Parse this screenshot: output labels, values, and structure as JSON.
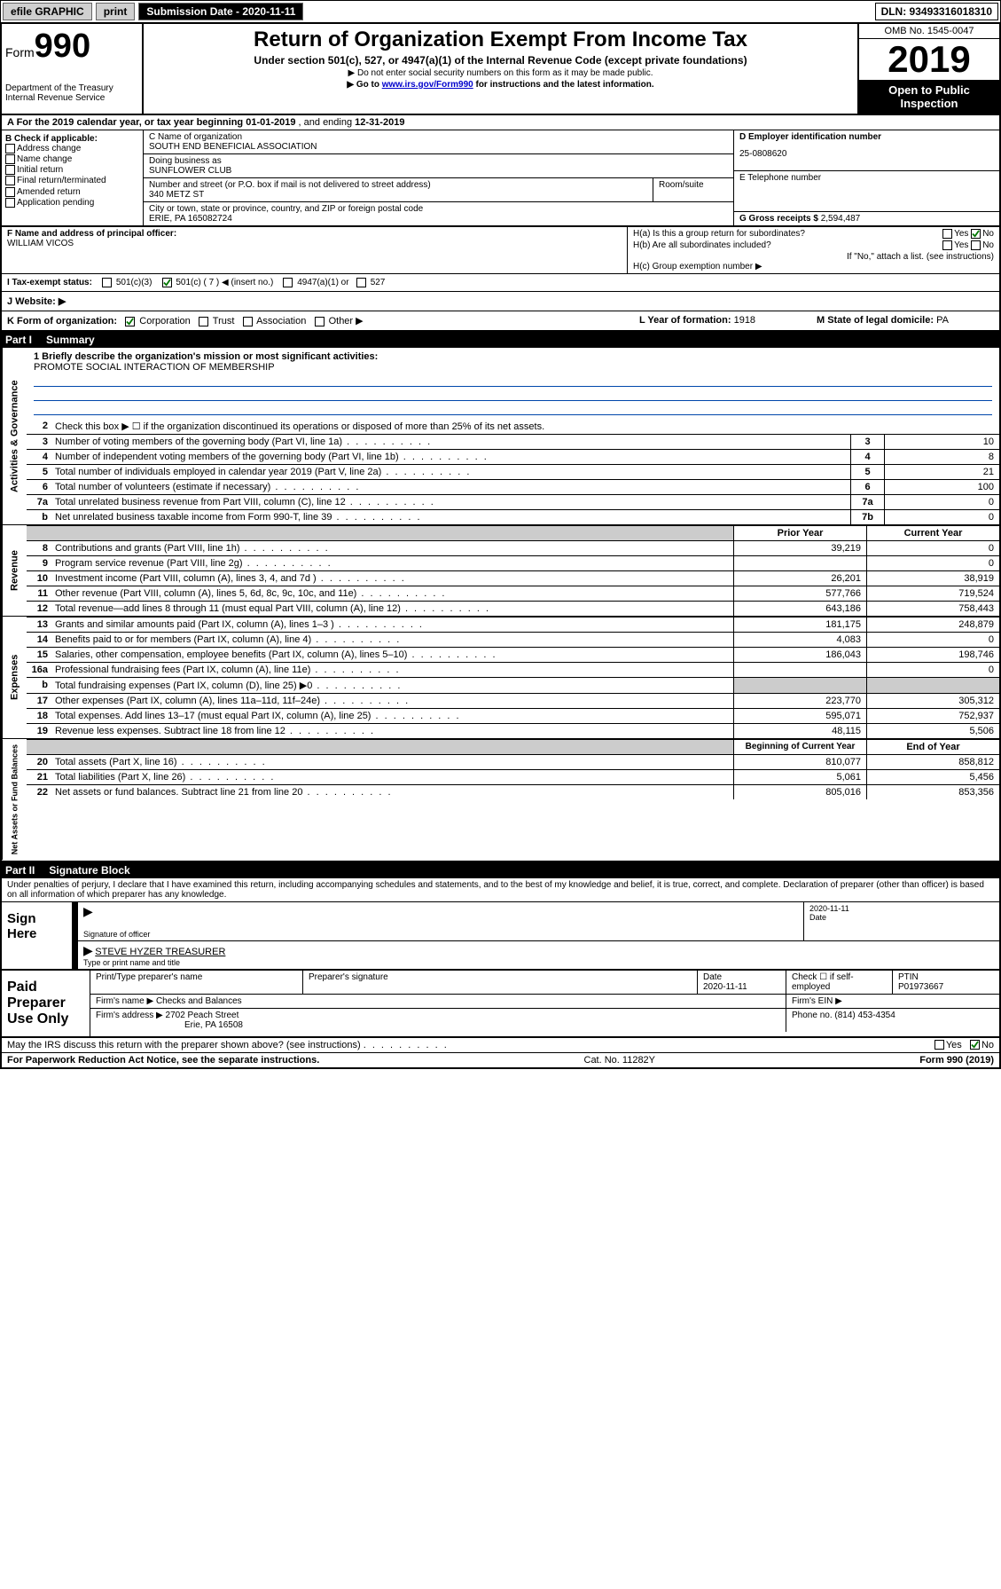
{
  "topbar": {
    "efile": "efile GRAPHIC",
    "print": "print",
    "subdate_label": "Submission Date - 2020-11-11",
    "dln": "DLN: 93493316018310"
  },
  "header": {
    "form_label": "Form",
    "form_num": "990",
    "dept": "Department of the Treasury",
    "irs": "Internal Revenue Service",
    "title": "Return of Organization Exempt From Income Tax",
    "sub1": "Under section 501(c), 527, or 4947(a)(1) of the Internal Revenue Code (except private foundations)",
    "sub2a": "▶ Do not enter social security numbers on this form as it may be made public.",
    "sub2b_pre": "▶ Go to ",
    "sub2b_link": "www.irs.gov/Form990",
    "sub2b_post": " for instructions and the latest information.",
    "omb": "OMB No. 1545-0047",
    "year": "2019",
    "open": "Open to Public Inspection"
  },
  "period": {
    "a_pre": "A For the 2019 calendar year, or tax year beginning ",
    "a_start": "01-01-2019",
    "a_mid": " , and ending ",
    "a_end": "12-31-2019"
  },
  "b": {
    "label": "B Check if applicable:",
    "items": [
      "Address change",
      "Name change",
      "Initial return",
      "Final return/terminated",
      "Amended return",
      "Application pending"
    ]
  },
  "c": {
    "name_label": "C Name of organization",
    "name": "SOUTH END BENEFICIAL ASSOCIATION",
    "dba_label": "Doing business as",
    "dba": "SUNFLOWER CLUB",
    "addr_label": "Number and street (or P.O. box if mail is not delivered to street address)",
    "addr": "340 METZ ST",
    "room_label": "Room/suite",
    "city_label": "City or town, state or province, country, and ZIP or foreign postal code",
    "city": "ERIE, PA  165082724"
  },
  "d": {
    "label": "D Employer identification number",
    "val": "25-0808620"
  },
  "e": {
    "label": "E Telephone number",
    "val": ""
  },
  "g": {
    "label": "G Gross receipts $",
    "val": "2,594,487"
  },
  "f": {
    "label": "F  Name and address of principal officer:",
    "val": "WILLIAM VICOS"
  },
  "h": {
    "a_label": "H(a)  Is this a group return for subordinates?",
    "a_yes": "Yes",
    "a_no": "No",
    "b_label": "H(b)  Are all subordinates included?",
    "b_yes": "Yes",
    "b_no": "No",
    "b_note": "If \"No,\" attach a list. (see instructions)",
    "c_label": "H(c)  Group exemption number ▶"
  },
  "i": {
    "label": "I  Tax-exempt status:",
    "c3": "501(c)(3)",
    "c_pre": "501(c) ( ",
    "c_num": "7",
    "c_post": " ) ◀ (insert no.)",
    "a1": "4947(a)(1) or",
    "527": "527"
  },
  "j": {
    "label": "J  Website: ▶"
  },
  "k": {
    "label": "K Form of organization:",
    "corp": "Corporation",
    "trust": "Trust",
    "assoc": "Association",
    "other": "Other ▶"
  },
  "l": {
    "label": "L Year of formation:",
    "val": "1918"
  },
  "m": {
    "label": "M State of legal domicile:",
    "val": "PA"
  },
  "part1": {
    "num": "Part I",
    "title": "Summary"
  },
  "vlabels": {
    "gov": "Activities & Governance",
    "rev": "Revenue",
    "exp": "Expenses",
    "net": "Net Assets or Fund Balances"
  },
  "mission": {
    "line1_label": "1  Briefly describe the organization's mission or most significant activities:",
    "text": "PROMOTE SOCIAL INTERACTION OF MEMBERSHIP"
  },
  "gov_rows": [
    {
      "n": "2",
      "desc": "Check this box ▶ ☐  if the organization discontinued its operations or disposed of more than 25% of its net assets.",
      "box": "",
      "val": ""
    },
    {
      "n": "3",
      "desc": "Number of voting members of the governing body (Part VI, line 1a)",
      "box": "3",
      "val": "10"
    },
    {
      "n": "4",
      "desc": "Number of independent voting members of the governing body (Part VI, line 1b)",
      "box": "4",
      "val": "8"
    },
    {
      "n": "5",
      "desc": "Total number of individuals employed in calendar year 2019 (Part V, line 2a)",
      "box": "5",
      "val": "21"
    },
    {
      "n": "6",
      "desc": "Total number of volunteers (estimate if necessary)",
      "box": "6",
      "val": "100"
    },
    {
      "n": "7a",
      "desc": "Total unrelated business revenue from Part VIII, column (C), line 12",
      "box": "7a",
      "val": "0"
    },
    {
      "n": " b",
      "desc": "Net unrelated business taxable income from Form 990-T, line 39",
      "box": "7b",
      "val": "0"
    }
  ],
  "rev_header": {
    "prior": "Prior Year",
    "curr": "Current Year"
  },
  "rev_rows": [
    {
      "n": "8",
      "desc": "Contributions and grants (Part VIII, line 1h)",
      "prior": "39,219",
      "curr": "0"
    },
    {
      "n": "9",
      "desc": "Program service revenue (Part VIII, line 2g)",
      "prior": "",
      "curr": "0"
    },
    {
      "n": "10",
      "desc": "Investment income (Part VIII, column (A), lines 3, 4, and 7d )",
      "prior": "26,201",
      "curr": "38,919"
    },
    {
      "n": "11",
      "desc": "Other revenue (Part VIII, column (A), lines 5, 6d, 8c, 9c, 10c, and 11e)",
      "prior": "577,766",
      "curr": "719,524"
    },
    {
      "n": "12",
      "desc": "Total revenue—add lines 8 through 11 (must equal Part VIII, column (A), line 12)",
      "prior": "643,186",
      "curr": "758,443"
    }
  ],
  "exp_rows": [
    {
      "n": "13",
      "desc": "Grants and similar amounts paid (Part IX, column (A), lines 1–3 )",
      "prior": "181,175",
      "curr": "248,879"
    },
    {
      "n": "14",
      "desc": "Benefits paid to or for members (Part IX, column (A), line 4)",
      "prior": "4,083",
      "curr": "0"
    },
    {
      "n": "15",
      "desc": "Salaries, other compensation, employee benefits (Part IX, column (A), lines 5–10)",
      "prior": "186,043",
      "curr": "198,746"
    },
    {
      "n": "16a",
      "desc": "Professional fundraising fees (Part IX, column (A), line 11e)",
      "prior": "",
      "curr": "0"
    },
    {
      "n": "  b",
      "desc": "Total fundraising expenses (Part IX, column (D), line 25) ▶0",
      "prior": "",
      "curr": "",
      "grey": true
    },
    {
      "n": "17",
      "desc": "Other expenses (Part IX, column (A), lines 11a–11d, 11f–24e)",
      "prior": "223,770",
      "curr": "305,312"
    },
    {
      "n": "18",
      "desc": "Total expenses. Add lines 13–17 (must equal Part IX, column (A), line 25)",
      "prior": "595,071",
      "curr": "752,937"
    },
    {
      "n": "19",
      "desc": "Revenue less expenses. Subtract line 18 from line 12",
      "prior": "48,115",
      "curr": "5,506"
    }
  ],
  "net_header": {
    "prior": "Beginning of Current Year",
    "curr": "End of Year"
  },
  "net_rows": [
    {
      "n": "20",
      "desc": "Total assets (Part X, line 16)",
      "prior": "810,077",
      "curr": "858,812"
    },
    {
      "n": "21",
      "desc": "Total liabilities (Part X, line 26)",
      "prior": "5,061",
      "curr": "5,456"
    },
    {
      "n": "22",
      "desc": "Net assets or fund balances. Subtract line 21 from line 20",
      "prior": "805,016",
      "curr": "853,356"
    }
  ],
  "part2": {
    "num": "Part II",
    "title": "Signature Block"
  },
  "perjury": "Under penalties of perjury, I declare that I have examined this return, including accompanying schedules and statements, and to the best of my knowledge and belief, it is true, correct, and complete. Declaration of preparer (other than officer) is based on all information of which preparer has any knowledge.",
  "sign": {
    "left": "Sign Here",
    "sig_label": "Signature of officer",
    "date": "2020-11-11",
    "date_label": "Date",
    "name": "STEVE HYZER  TREASURER",
    "name_label": "Type or print name and title"
  },
  "paid": {
    "left": "Paid Preparer Use Only",
    "r1": {
      "c1_label": "Print/Type preparer's name",
      "c1": "",
      "c2_label": "Preparer's signature",
      "c2": "",
      "c3_label": "Date",
      "c3": "2020-11-11",
      "c4_label": "Check ☐ if self-employed",
      "c5_label": "PTIN",
      "c5": "P01973667"
    },
    "r2": {
      "firm_label": "Firm's name    ▶",
      "firm": "Checks and Balances",
      "ein_label": "Firm's EIN ▶"
    },
    "r3": {
      "addr_label": "Firm's address ▶",
      "addr1": "2702 Peach Street",
      "addr2": "Erie, PA  16508",
      "phone_label": "Phone no.",
      "phone": "(814) 453-4354"
    }
  },
  "irs_discuss": {
    "q": "May the IRS discuss this return with the preparer shown above? (see instructions)",
    "yes": "Yes",
    "no": "No"
  },
  "footer": {
    "left": "For Paperwork Reduction Act Notice, see the separate instructions.",
    "mid": "Cat. No. 11282Y",
    "right": "Form 990 (2019)"
  }
}
